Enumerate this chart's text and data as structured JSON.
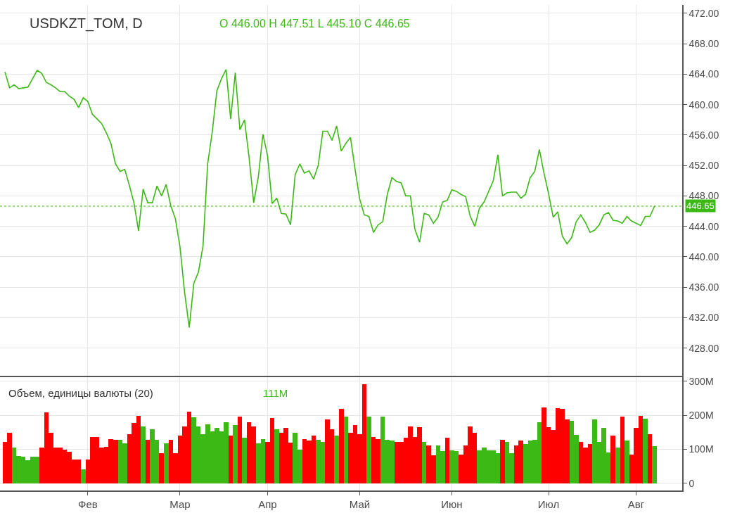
{
  "chart_data": [
    {
      "type": "line",
      "title": "USDKZT_TOM, D",
      "annotations": [
        "O 446.00 H 447.51 L 445.10 C 446.65"
      ],
      "categories": [
        null,
        null,
        null,
        null,
        null,
        null,
        null,
        null,
        null,
        null,
        null,
        null,
        null,
        null,
        null,
        null,
        null,
        null,
        null,
        null,
        null,
        null,
        null,
        null,
        null,
        null,
        null,
        null,
        null,
        null,
        null,
        null,
        null,
        null,
        null,
        null,
        null,
        null,
        null,
        null,
        null,
        null,
        null,
        null,
        null,
        null,
        null,
        null,
        null,
        null,
        null,
        null,
        null,
        null,
        null,
        null,
        null,
        null,
        null,
        null,
        null,
        null,
        null,
        null,
        null,
        null,
        null,
        null,
        null,
        null,
        null,
        null,
        null,
        null,
        null,
        null,
        null,
        null,
        null,
        null,
        null,
        null,
        null,
        null,
        null,
        null,
        null,
        null,
        null,
        null,
        null,
        null,
        null,
        null,
        null,
        null,
        null,
        null,
        null,
        null,
        null,
        null,
        null,
        null,
        null,
        null,
        null,
        null,
        null,
        null,
        null,
        null,
        null,
        null,
        null,
        null,
        null,
        null,
        null,
        null,
        null,
        null,
        null,
        null,
        null,
        null,
        null,
        null,
        null,
        null,
        null,
        null,
        null,
        null,
        null,
        null,
        null,
        null,
        null,
        null,
        null,
        null
      ],
      "series": [
        {
          "color": "#3cb914",
          "values": [
            464.3,
            462.2,
            462.6,
            462.1,
            462.2,
            462.3,
            463.4,
            464.5,
            464.1,
            462.9,
            462.6,
            462.2,
            461.7,
            461.7,
            461.1,
            460.7,
            459.6,
            460.9,
            460.4,
            458.7,
            458.1,
            457.5,
            456.3,
            454.9,
            452.2,
            451.2,
            451.5,
            449.4,
            447.1,
            443.4,
            448.9,
            447.1,
            447.1,
            449.3,
            448.0,
            449.5,
            446.7,
            445.0,
            441.3,
            435.3,
            430.7,
            436.5,
            438.0,
            441.4,
            452.2,
            456.4,
            461.8,
            463.4,
            464.6,
            458.1,
            464.2,
            456.7,
            458.0,
            453.0,
            447.1,
            450.5,
            456.1,
            453.3,
            447.0,
            447.7,
            445.7,
            445.6,
            444.2,
            450.8,
            452.2,
            451.0,
            451.3,
            450.2,
            452.0,
            456.5,
            456.5,
            455.3,
            457.2,
            453.9,
            454.9,
            455.7,
            451.5,
            447.6,
            445.5,
            445.3,
            443.2,
            444.2,
            444.6,
            448.2,
            450.4,
            449.9,
            449.7,
            448.0,
            448.0,
            443.6,
            441.9,
            445.7,
            445.5,
            444.4,
            445.2,
            447.2,
            447.4,
            448.8,
            448.6,
            448.2,
            447.9,
            445.3,
            444.0,
            446.4,
            447.2,
            448.6,
            450.0,
            453.4,
            448.0,
            448.4,
            448.5,
            448.5,
            447.7,
            448.2,
            450.4,
            451.2,
            454.1,
            451.0,
            448.3,
            445.2,
            445.9,
            442.7,
            441.7,
            442.5,
            444.6,
            445.5,
            444.5,
            443.2,
            443.5,
            444.2,
            445.5,
            445.8,
            444.8,
            444.7,
            444.4,
            445.3,
            444.7,
            444.4,
            444.1,
            445.3,
            445.3,
            446.65
          ]
        }
      ],
      "ylim": [
        424.4,
        473.1
      ],
      "yticks": [
        {
          "value": 428,
          "label": "428.00"
        },
        {
          "value": 432,
          "label": "432.00"
        },
        {
          "value": 436,
          "label": "436.00"
        },
        {
          "value": 440,
          "label": "440.00"
        },
        {
          "value": 444,
          "label": "444.00"
        },
        {
          "value": 448,
          "label": "448.00"
        },
        {
          "value": 452,
          "label": "452.00"
        },
        {
          "value": 456,
          "label": "456.00"
        },
        {
          "value": 460,
          "label": "460.00"
        },
        {
          "value": 464,
          "label": "464.00"
        },
        {
          "value": 468,
          "label": "468.00"
        },
        {
          "value": 472,
          "label": "472.00"
        }
      ],
      "ref_lines": [
        {
          "axis": "y",
          "value": 446.65,
          "label": "446.65",
          "color": "#3cb914",
          "line_style": "dotted"
        }
      ],
      "tick_labels": "y",
      "grid": true,
      "marker": "none",
      "line_style": "solid"
    },
    {
      "type": "bar",
      "title": "Объем, единицы валюты (20)",
      "annotations": [
        "111M"
      ],
      "categories": [
        null,
        null,
        null,
        null,
        null,
        null,
        null,
        null,
        null,
        null,
        null,
        null,
        null,
        null,
        null,
        null,
        null,
        null,
        "Фев",
        null,
        null,
        null,
        null,
        null,
        null,
        null,
        null,
        null,
        null,
        null,
        null,
        null,
        null,
        null,
        null,
        null,
        null,
        null,
        "Мар",
        null,
        null,
        null,
        null,
        null,
        null,
        null,
        null,
        null,
        null,
        null,
        null,
        null,
        null,
        null,
        null,
        null,
        null,
        "Апр",
        null,
        null,
        null,
        null,
        null,
        null,
        null,
        null,
        null,
        null,
        null,
        null,
        null,
        null,
        null,
        null,
        null,
        null,
        null,
        "Май",
        null,
        null,
        null,
        null,
        null,
        null,
        null,
        null,
        null,
        null,
        null,
        null,
        null,
        null,
        null,
        null,
        null,
        null,
        null,
        "Июн",
        null,
        null,
        null,
        null,
        null,
        null,
        null,
        null,
        null,
        null,
        null,
        null,
        null,
        null,
        null,
        null,
        null,
        null,
        null,
        null,
        "Июл",
        null,
        null,
        null,
        null,
        null,
        null,
        null,
        null,
        null,
        null,
        null,
        null,
        null,
        null,
        null,
        null,
        null,
        null,
        "Авг",
        null,
        null,
        null,
        null
      ],
      "values": [
        122,
        150,
        107,
        81,
        80,
        69,
        80,
        80,
        107,
        210,
        150,
        107,
        107,
        100,
        93,
        72,
        72,
        42,
        72,
        138,
        138,
        107,
        108,
        131,
        129,
        129,
        118,
        145,
        179,
        200,
        169,
        129,
        161,
        129,
        90,
        118,
        129,
        90,
        142,
        168,
        212,
        195,
        169,
        145,
        175,
        154,
        164,
        154,
        181,
        142,
        173,
        197,
        135,
        181,
        169,
        119,
        131,
        122,
        193,
        160,
        150,
        164,
        121,
        150,
        100,
        131,
        126,
        142,
        129,
        123,
        188,
        161,
        142,
        219,
        197,
        150,
        173,
        145,
        293,
        197,
        138,
        131,
        197,
        129,
        126,
        123,
        123,
        135,
        169,
        138,
        167,
        123,
        113,
        83,
        113,
        95,
        136,
        98,
        95,
        85,
        113,
        169,
        150,
        98,
        107,
        98,
        98,
        89,
        129,
        122,
        89,
        113,
        126,
        116,
        126,
        129,
        181,
        224,
        167,
        157,
        222,
        219,
        188,
        185,
        144,
        123,
        107,
        116,
        188,
        123,
        164,
        92,
        142,
        107,
        197,
        126,
        85,
        164,
        200,
        191,
        145,
        111
      ],
      "colors": [
        "#ff0000",
        "#ff0000",
        "#3cb914",
        "#3cb914",
        "#3cb914",
        "#3cb914",
        "#3cb914",
        "#3cb914",
        "#ff0000",
        "#ff0000",
        "#ff0000",
        "#ff0000",
        "#ff0000",
        "#ff0000",
        "#ff0000",
        "#ff0000",
        "#ff0000",
        "#3cb914",
        "#ff0000",
        "#ff0000",
        "#ff0000",
        "#ff0000",
        "#ff0000",
        "#ff0000",
        "#ff0000",
        "#3cb914",
        "#3cb914",
        "#ff0000",
        "#ff0000",
        "#ff0000",
        "#3cb914",
        "#ff0000",
        "#3cb914",
        "#3cb914",
        "#ff0000",
        "#3cb914",
        "#ff0000",
        "#ff0000",
        "#ff0000",
        "#ff0000",
        "#ff0000",
        "#3cb914",
        "#3cb914",
        "#3cb914",
        "#3cb914",
        "#3cb914",
        "#3cb914",
        "#3cb914",
        "#3cb914",
        "#ff0000",
        "#3cb914",
        "#ff0000",
        "#3cb914",
        "#ff0000",
        "#ff0000",
        "#3cb914",
        "#3cb914",
        "#ff0000",
        "#ff0000",
        "#3cb914",
        "#ff0000",
        "#ff0000",
        "#ff0000",
        "#3cb914",
        "#3cb914",
        "#ff0000",
        "#ff0000",
        "#ff0000",
        "#3cb914",
        "#3cb914",
        "#ff0000",
        "#ff0000",
        "#3cb914",
        "#ff0000",
        "#3cb914",
        "#ff0000",
        "#ff0000",
        "#ff0000",
        "#ff0000",
        "#3cb914",
        "#ff0000",
        "#ff0000",
        "#3cb914",
        "#3cb914",
        "#3cb914",
        "#ff0000",
        "#ff0000",
        "#ff0000",
        "#ff0000",
        "#ff0000",
        "#ff0000",
        "#3cb914",
        "#ff0000",
        "#ff0000",
        "#3cb914",
        "#3cb914",
        "#ff0000",
        "#3cb914",
        "#3cb914",
        "#ff0000",
        "#ff0000",
        "#ff0000",
        "#ff0000",
        "#3cb914",
        "#3cb914",
        "#3cb914",
        "#3cb914",
        "#3cb914",
        "#ff0000",
        "#3cb914",
        "#3cb914",
        "#ff0000",
        "#ff0000",
        "#3cb914",
        "#3cb914",
        "#3cb914",
        "#3cb914",
        "#ff0000",
        "#ff0000",
        "#ff0000",
        "#ff0000",
        "#ff0000",
        "#ff0000",
        "#3cb914",
        "#3cb914",
        "#ff0000",
        "#ff0000",
        "#ff0000",
        "#3cb914",
        "#3cb914",
        "#3cb914",
        "#3cb914",
        "#ff0000",
        "#3cb914",
        "#ff0000",
        "#3cb914",
        "#ff0000",
        "#ff0000",
        "#ff0000",
        "#3cb914",
        "#ff0000",
        "#3cb914"
      ],
      "ylim": [
        -21,
        313
      ],
      "yticks": [
        0,
        {
          "value": 100,
          "label": "100M"
        },
        {
          "value": 200,
          "label": "200M"
        },
        {
          "value": 300,
          "label": "300M"
        }
      ],
      "grid": true
    }
  ]
}
